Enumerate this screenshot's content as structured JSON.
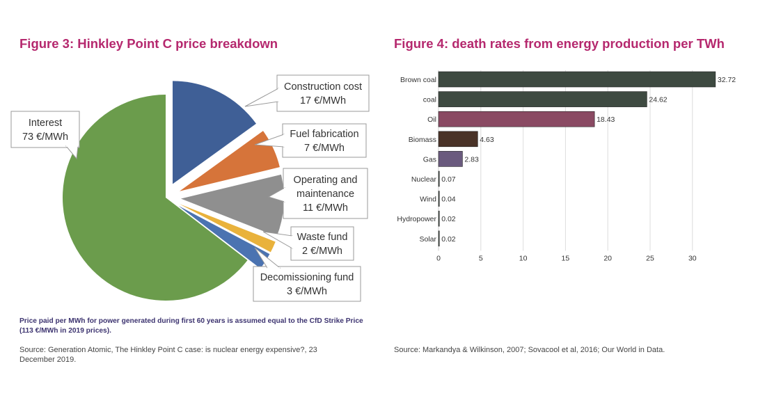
{
  "figure3": {
    "title": "Figure 3: Hinkley Point C price breakdown",
    "note": "Price paid per MWh for power generated during first 60 years is assumed equal to the CfD Strike Price (113 €/MWh in 2019 prices).",
    "source": "Source: Generation Atomic, The Hinkley Point C case: is nuclear energy expensive?, 23 December 2019."
  },
  "figure4": {
    "title": "Figure 4: death rates from energy production per TWh",
    "source": "Source: Markandya & Wilkinson, 2007; Sovacool et al, 2016; Our World in Data."
  },
  "chart_data": [
    {
      "type": "pie",
      "title": "Figure 3: Hinkley Point C price breakdown",
      "unit": "€/MWh",
      "slices": [
        {
          "label": "Construction cost",
          "value": 17,
          "value_label": "17 €/MWh",
          "color": "#3f5f96"
        },
        {
          "label": "Fuel fabrication",
          "value": 7,
          "value_label": "7 €/MWh",
          "color": "#d6743a"
        },
        {
          "label": "Operating and maintenance",
          "value": 11,
          "value_label": "11 €/MWh",
          "color": "#8f8f8f"
        },
        {
          "label": "Waste fund",
          "value": 2,
          "value_label": "2 €/MWh",
          "color": "#e9b23c"
        },
        {
          "label": "Decomissioning fund",
          "value": 3,
          "value_label": "3 €/MWh",
          "color": "#4b73b1"
        },
        {
          "label": "Interest",
          "value": 73,
          "value_label": "73 €/MWh",
          "color": "#6b9c4c"
        }
      ]
    },
    {
      "type": "bar",
      "orientation": "horizontal",
      "title": "Figure 4: death rates from energy production per TWh",
      "categories": [
        "Brown coal",
        "coal",
        "Oil",
        "Biomass",
        "Gas",
        "Nuclear",
        "Wind",
        "Hydropower",
        "Solar"
      ],
      "values": [
        32.72,
        24.62,
        18.43,
        4.63,
        2.83,
        0.07,
        0.04,
        0.02,
        0.02
      ],
      "value_labels": [
        "32.72",
        "24.62",
        "18.43",
        "4.63",
        "2.83",
        "0.07",
        "0.04",
        "0.02",
        "0.02"
      ],
      "colors": [
        "#3e4a41",
        "#3e4a41",
        "#8a4a63",
        "#4a3328",
        "#6a5a7e",
        "#3e4a41",
        "#3e4a41",
        "#3e4a41",
        "#3e4a41"
      ],
      "xlim": [
        0,
        33
      ],
      "xticks": [
        "0",
        "5",
        "10",
        "15",
        "20",
        "25",
        "30"
      ],
      "grid": true
    }
  ]
}
